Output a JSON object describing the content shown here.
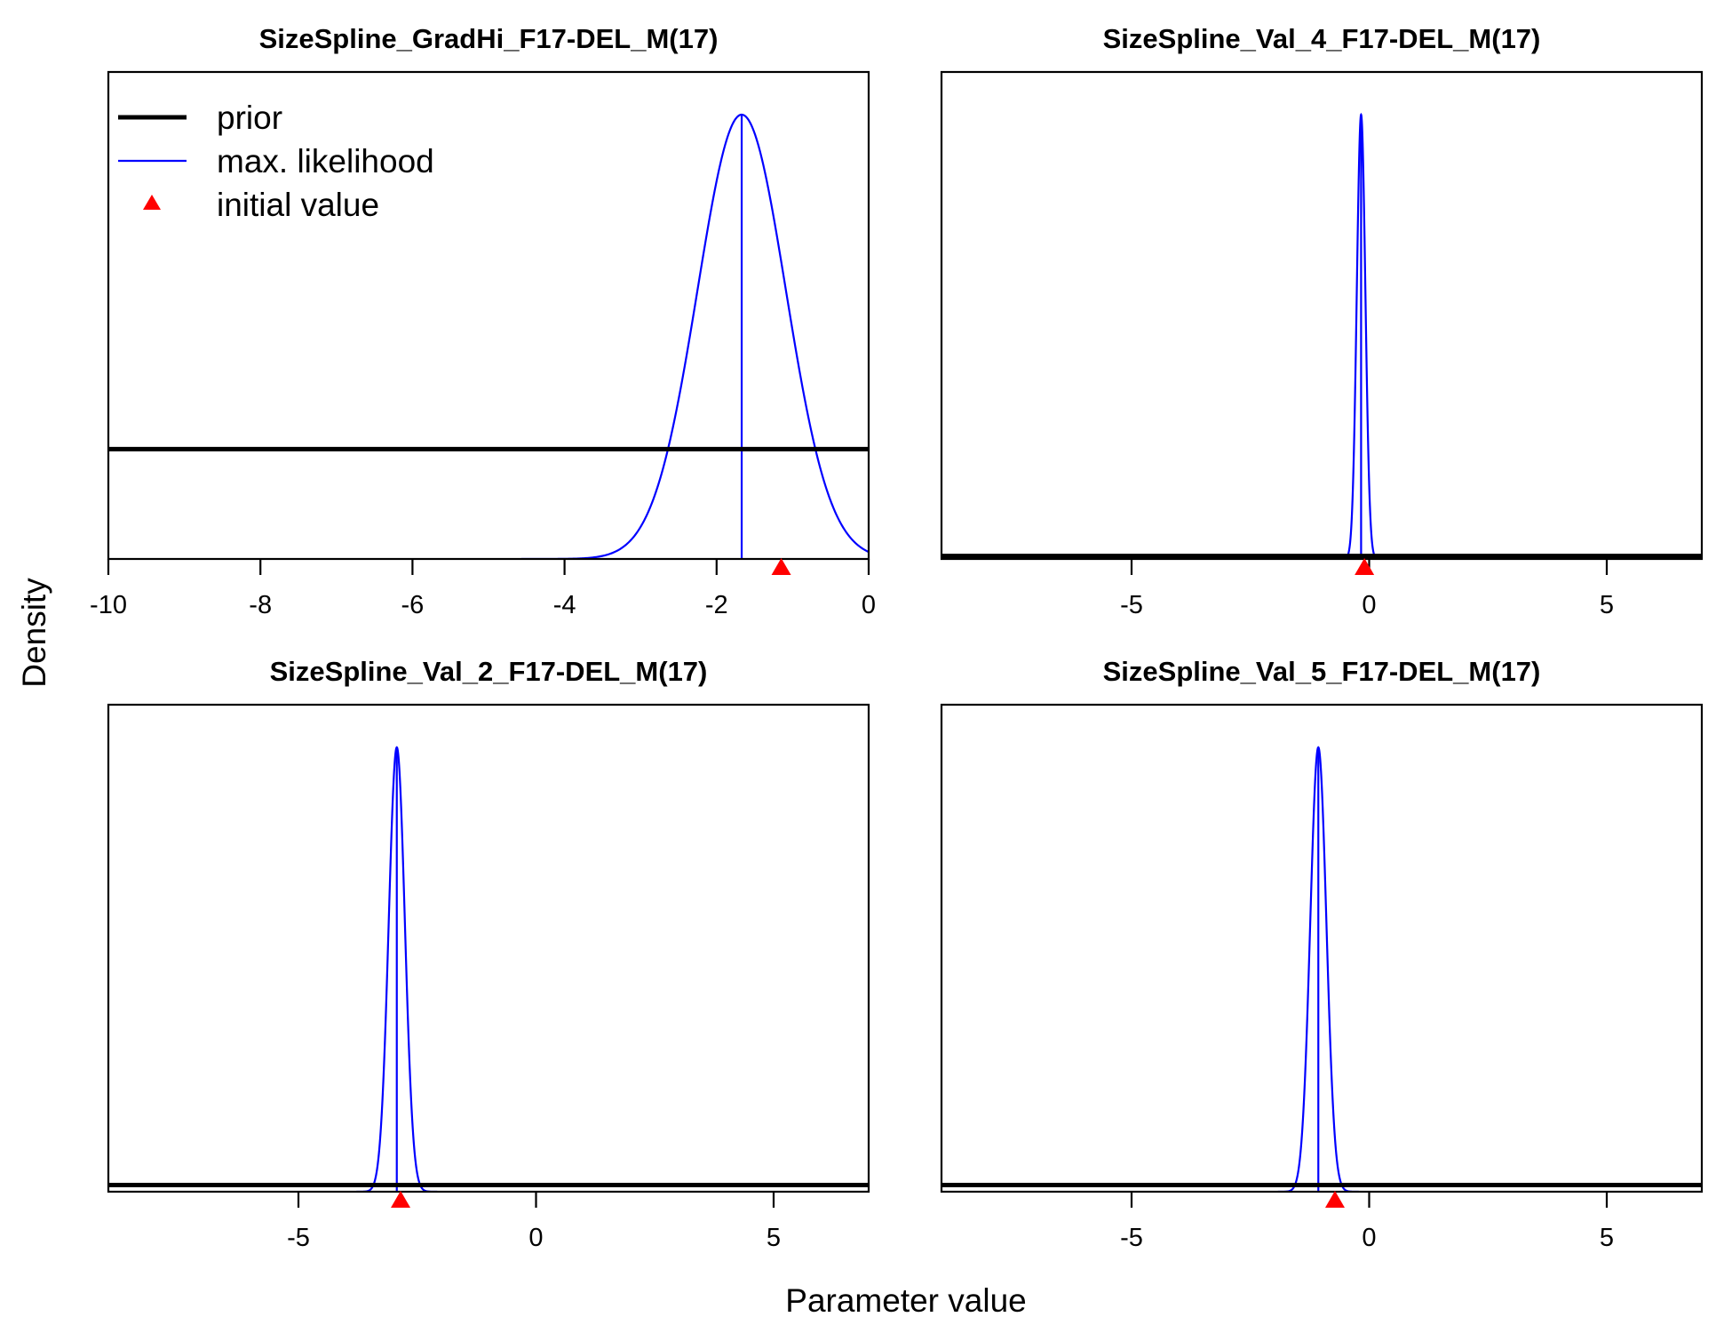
{
  "chart_data": {
    "type": "line",
    "xlabel": "Parameter value",
    "ylabel": "Density",
    "legend": {
      "placement": "top-left of first panel",
      "entries": [
        {
          "label": "prior",
          "style": "thick black line"
        },
        {
          "label": "max. likelihood",
          "style": "thin blue line"
        },
        {
          "label": "initial value",
          "style": "red triangle"
        }
      ]
    },
    "colors": {
      "prior": "#000000",
      "mle": "#0000ff",
      "initial": "#ff0000",
      "frame": "#000000"
    },
    "panels": [
      {
        "title": "SizeSpline_GradHi_F17-DEL_M(17)",
        "xlim": [
          -10,
          0
        ],
        "xticks": [
          -10,
          -8,
          -6,
          -4,
          -2,
          0
        ],
        "xtick_labels": [
          "-10",
          "-8",
          "-6",
          "-4",
          "-2",
          "0"
        ],
        "prior_density": 0.17,
        "mle": {
          "mean": -1.67,
          "sd": 0.58
        },
        "initial_value": -1.15
      },
      {
        "title": "SizeSpline_Val_4_F17-DEL_M(17)",
        "xlim": [
          -9,
          7
        ],
        "xticks": [
          -5,
          0,
          5
        ],
        "xtick_labels": [
          "-5",
          "0",
          "5"
        ],
        "prior_density": 0.03,
        "mle": {
          "mean": -0.17,
          "sd": 0.09
        },
        "initial_value": -0.1
      },
      {
        "title": "SizeSpline_Val_2_F17-DEL_M(17)",
        "xlim": [
          -9,
          7
        ],
        "xticks": [
          -5,
          0,
          5
        ],
        "xtick_labels": [
          "-5",
          "0",
          "5"
        ],
        "prior_density": 0.035,
        "mle": {
          "mean": -2.93,
          "sd": 0.17
        },
        "initial_value": -2.85
      },
      {
        "title": "SizeSpline_Val_5_F17-DEL_M(17)",
        "xlim": [
          -9,
          7
        ],
        "xticks": [
          -5,
          0,
          5
        ],
        "xtick_labels": [
          "-5",
          "0",
          "5"
        ],
        "prior_density": 0.035,
        "mle": {
          "mean": -1.07,
          "sd": 0.17
        },
        "initial_value": -0.72
      }
    ]
  }
}
